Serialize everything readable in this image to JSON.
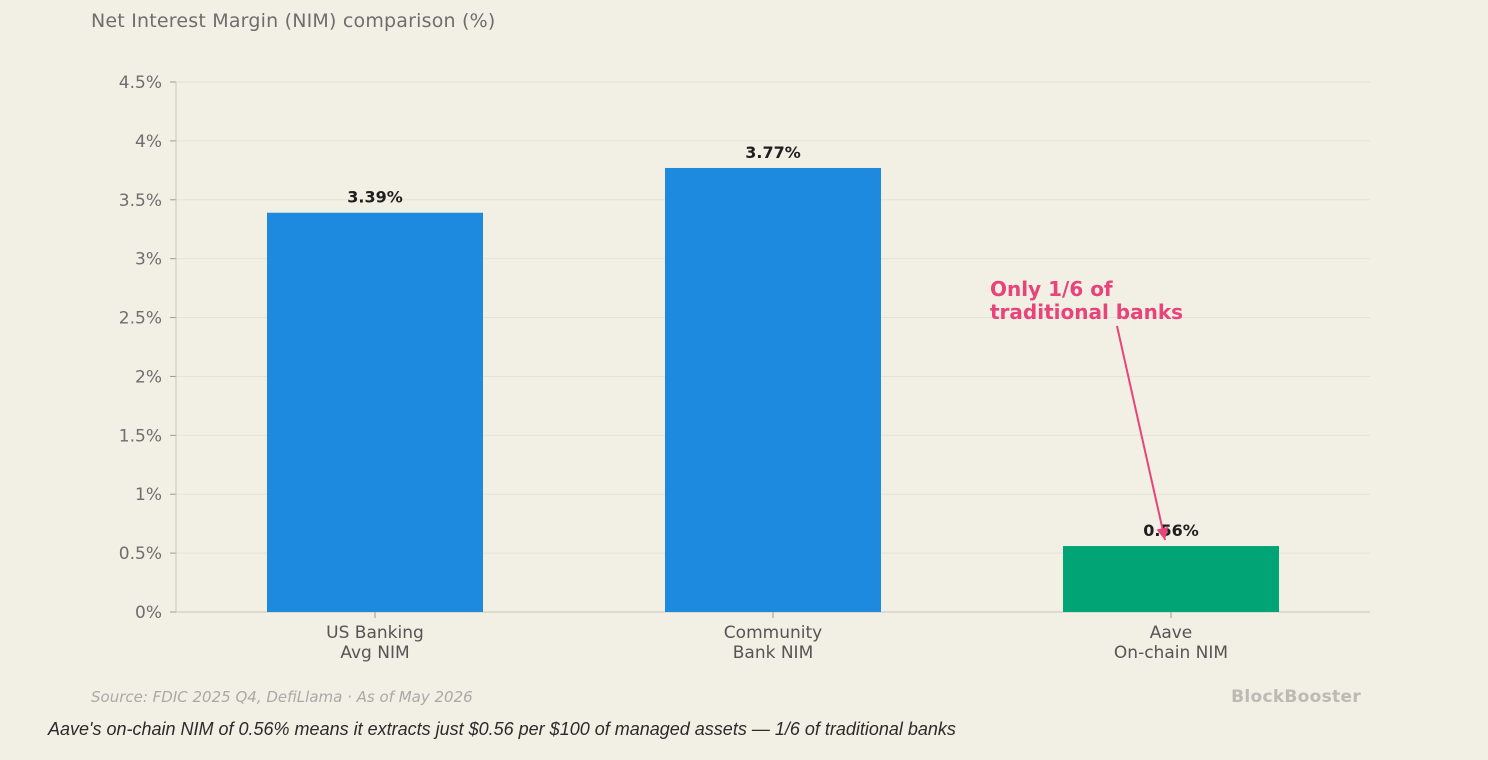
{
  "header": {
    "subtitle": "Net Interest Margin (NIM) comparison (%)"
  },
  "chart_data": {
    "type": "bar",
    "categories": [
      [
        "US Banking",
        "Avg NIM"
      ],
      [
        "Community",
        "Bank NIM"
      ],
      [
        "Aave",
        "On-chain NIM"
      ]
    ],
    "values": [
      3.39,
      3.77,
      0.56
    ],
    "value_labels": [
      "3.39%",
      "3.77%",
      "0.56%"
    ],
    "bar_colors": [
      "#1d8ae0",
      "#1d8ae0",
      "#00a475"
    ],
    "ylim": [
      0,
      4.5
    ],
    "yticks": [
      {
        "value": 0,
        "label": "0%"
      },
      {
        "value": 0.5,
        "label": "0.5%"
      },
      {
        "value": 1,
        "label": "1%"
      },
      {
        "value": 1.5,
        "label": "1.5%"
      },
      {
        "value": 2,
        "label": "2%"
      },
      {
        "value": 2.5,
        "label": "2.5%"
      },
      {
        "value": 3,
        "label": "3%"
      },
      {
        "value": 3.5,
        "label": "3.5%"
      },
      {
        "value": 4,
        "label": "4%"
      },
      {
        "value": 4.5,
        "label": "4.5%"
      }
    ],
    "grid": true,
    "annotation": {
      "lines": [
        "Only 1/6 of",
        "traditional banks"
      ],
      "color": "#e8437a",
      "target_category_index": 2
    }
  },
  "footer": {
    "source": "Source: FDIC 2025 Q4, DefiLlama · As of May 2026",
    "brand": "BlockBooster",
    "caption": "Aave's on-chain NIM of 0.56% means it extracts just $0.56 per $100 of managed assets — 1/6 of traditional banks"
  }
}
